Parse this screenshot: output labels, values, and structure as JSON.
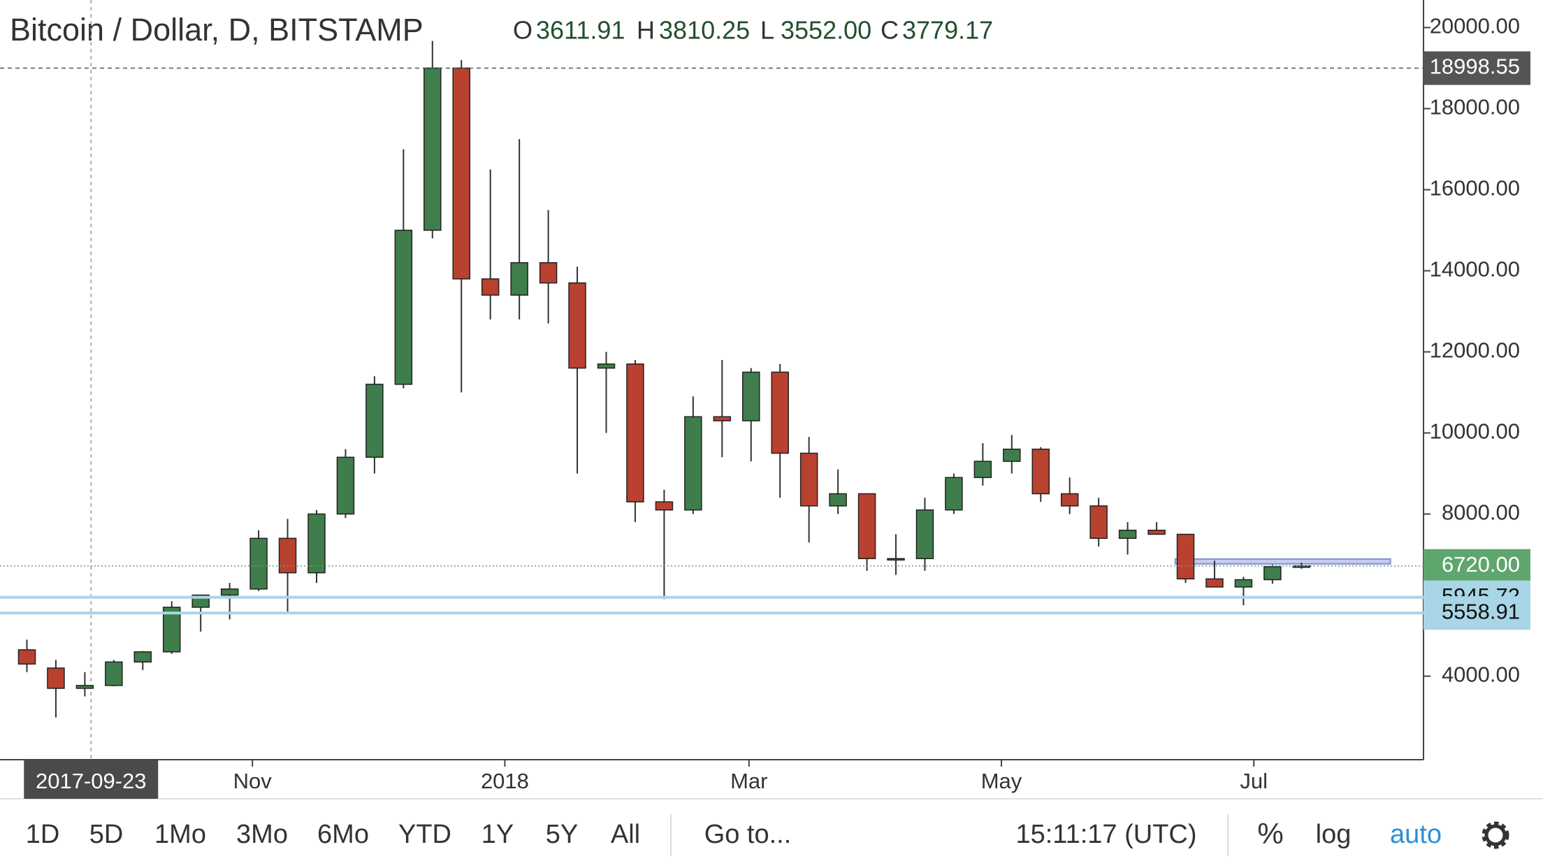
{
  "chart_data": {
    "type": "candlestick",
    "title": "Bitcoin / Dollar, D, BITSTAMP",
    "ohlc_legend": [
      {
        "key": "O",
        "value": "3611.91"
      },
      {
        "key": "H",
        "value": "3810.25"
      },
      {
        "key": "L",
        "value": "3552.00"
      },
      {
        "key": "C",
        "value": "3779.17"
      }
    ],
    "x": [
      "2017-09-04",
      "2017-09-11",
      "2017-09-18",
      "2017-09-25",
      "2017-10-02",
      "2017-10-09",
      "2017-10-16",
      "2017-10-23",
      "2017-10-30",
      "2017-11-06",
      "2017-11-13",
      "2017-11-20",
      "2017-11-27",
      "2017-12-04",
      "2017-12-11",
      "2017-12-18",
      "2017-12-25",
      "2018-01-01",
      "2018-01-08",
      "2018-01-15",
      "2018-01-22",
      "2018-01-29",
      "2018-02-05",
      "2018-02-12",
      "2018-02-19",
      "2018-02-26",
      "2018-03-05",
      "2018-03-12",
      "2018-03-19",
      "2018-03-26",
      "2018-04-02",
      "2018-04-09",
      "2018-04-16",
      "2018-04-23",
      "2018-04-30",
      "2018-05-07",
      "2018-05-14",
      "2018-05-21",
      "2018-05-28",
      "2018-06-04",
      "2018-06-11",
      "2018-06-18",
      "2018-06-25",
      "2018-07-02",
      "2018-07-09"
    ],
    "open": [
      4650,
      4200,
      3700,
      3770,
      4350,
      4600,
      5700,
      6000,
      6150,
      7400,
      6550,
      8000,
      9400,
      11200,
      15000,
      19000,
      13800,
      13400,
      14200,
      13700,
      11600,
      11700,
      8300,
      8100,
      10400,
      10300,
      11500,
      9500,
      8200,
      8500,
      6900,
      6900,
      8100,
      8900,
      9300,
      9600,
      8500,
      8200,
      7400,
      7600,
      7500,
      6400,
      6200,
      6380,
      6700
    ],
    "high": [
      4900,
      4400,
      4100,
      4400,
      4620,
      5850,
      6000,
      6300,
      7600,
      7880,
      8100,
      9600,
      11400,
      17000,
      19670,
      19200,
      16500,
      17250,
      15500,
      14100,
      12000,
      11800,
      8600,
      10900,
      11800,
      11600,
      11700,
      9900,
      9100,
      8500,
      7500,
      8400,
      9000,
      9750,
      9950,
      9650,
      8900,
      8400,
      7800,
      7800,
      7500,
      6850,
      6450,
      6750,
      6800
    ],
    "low": [
      4100,
      2980,
      3500,
      3750,
      4150,
      4550,
      5100,
      5400,
      6100,
      5550,
      6300,
      7900,
      9000,
      11100,
      14800,
      11000,
      12800,
      12800,
      12700,
      9000,
      10000,
      7800,
      5900,
      8000,
      9400,
      9300,
      8400,
      7300,
      8000,
      6600,
      6500,
      6600,
      8000,
      8700,
      9000,
      8300,
      8000,
      7200,
      7000,
      7500,
      6300,
      6200,
      5750,
      6280,
      6650
    ],
    "close": [
      4300,
      3700,
      3770,
      4350,
      4600,
      5700,
      6000,
      6150,
      7400,
      6550,
      8000,
      9400,
      11200,
      15000,
      19000,
      13800,
      13400,
      14200,
      13700,
      11600,
      11700,
      8300,
      8100,
      10400,
      10300,
      11500,
      9500,
      8200,
      8500,
      6900,
      6900,
      8100,
      8900,
      9300,
      9600,
      8500,
      8200,
      7400,
      7600,
      7500,
      6400,
      6200,
      6380,
      6700,
      6720
    ],
    "up_color": "#3f7d4c",
    "down_color": "#b9412f",
    "wick_color": "#333333",
    "xlim": [
      "2017-09-01",
      "2018-08-11"
    ],
    "xticks": [
      {
        "value": "2017-11-01",
        "label": "Nov"
      },
      {
        "value": "2018-01-01",
        "label": "2018"
      },
      {
        "value": "2018-03-01",
        "label": "Mar"
      },
      {
        "value": "2018-05-01",
        "label": "May"
      },
      {
        "value": "2018-07-01",
        "label": "Jul"
      }
    ],
    "ylim": [
      1940,
      20680
    ],
    "yticks": [
      {
        "value": 4000,
        "label": "4000.00"
      },
      {
        "value": 8000,
        "label": "8000.00"
      },
      {
        "value": 10000,
        "label": "10000.00"
      },
      {
        "value": 12000,
        "label": "12000.00"
      },
      {
        "value": 14000,
        "label": "14000.00"
      },
      {
        "value": 16000,
        "label": "16000.00"
      },
      {
        "value": 18000,
        "label": "18000.00"
      },
      {
        "value": 20000,
        "label": "20000.00"
      }
    ],
    "price_lines": [
      {
        "value": 18998.55,
        "color": "#555555",
        "text_color": "#ffffff",
        "style": "dashed"
      },
      {
        "value": {
          "value": 6720,
          "label": "6720.00"
        },
        "color": "#5fa66e",
        "text_color": "#ffffff",
        "style": "dotted"
      },
      {
        "value": 5945.72,
        "color": "#a9d6e6",
        "text_color": "#111111",
        "style": "solid"
      },
      {
        "value": 5558.91,
        "color": "#a9d6e6",
        "text_color": "#111111",
        "style": "solid"
      }
    ],
    "zone": {
      "from": "2018-06-12",
      "to": "2018-08-03",
      "low": 6770,
      "high": 6890,
      "color": "#7f8fd6"
    },
    "crosshair": "2017-09-23"
  },
  "toolbar": {
    "ranges": [
      "1D",
      "5D",
      "1Mo",
      "3Mo",
      "6Mo",
      "YTD",
      "1Y",
      "5Y",
      "All"
    ],
    "goto": "Go to...",
    "clock": "15:11:17 (UTC)",
    "percent": "%",
    "log": "log",
    "auto": "auto"
  }
}
